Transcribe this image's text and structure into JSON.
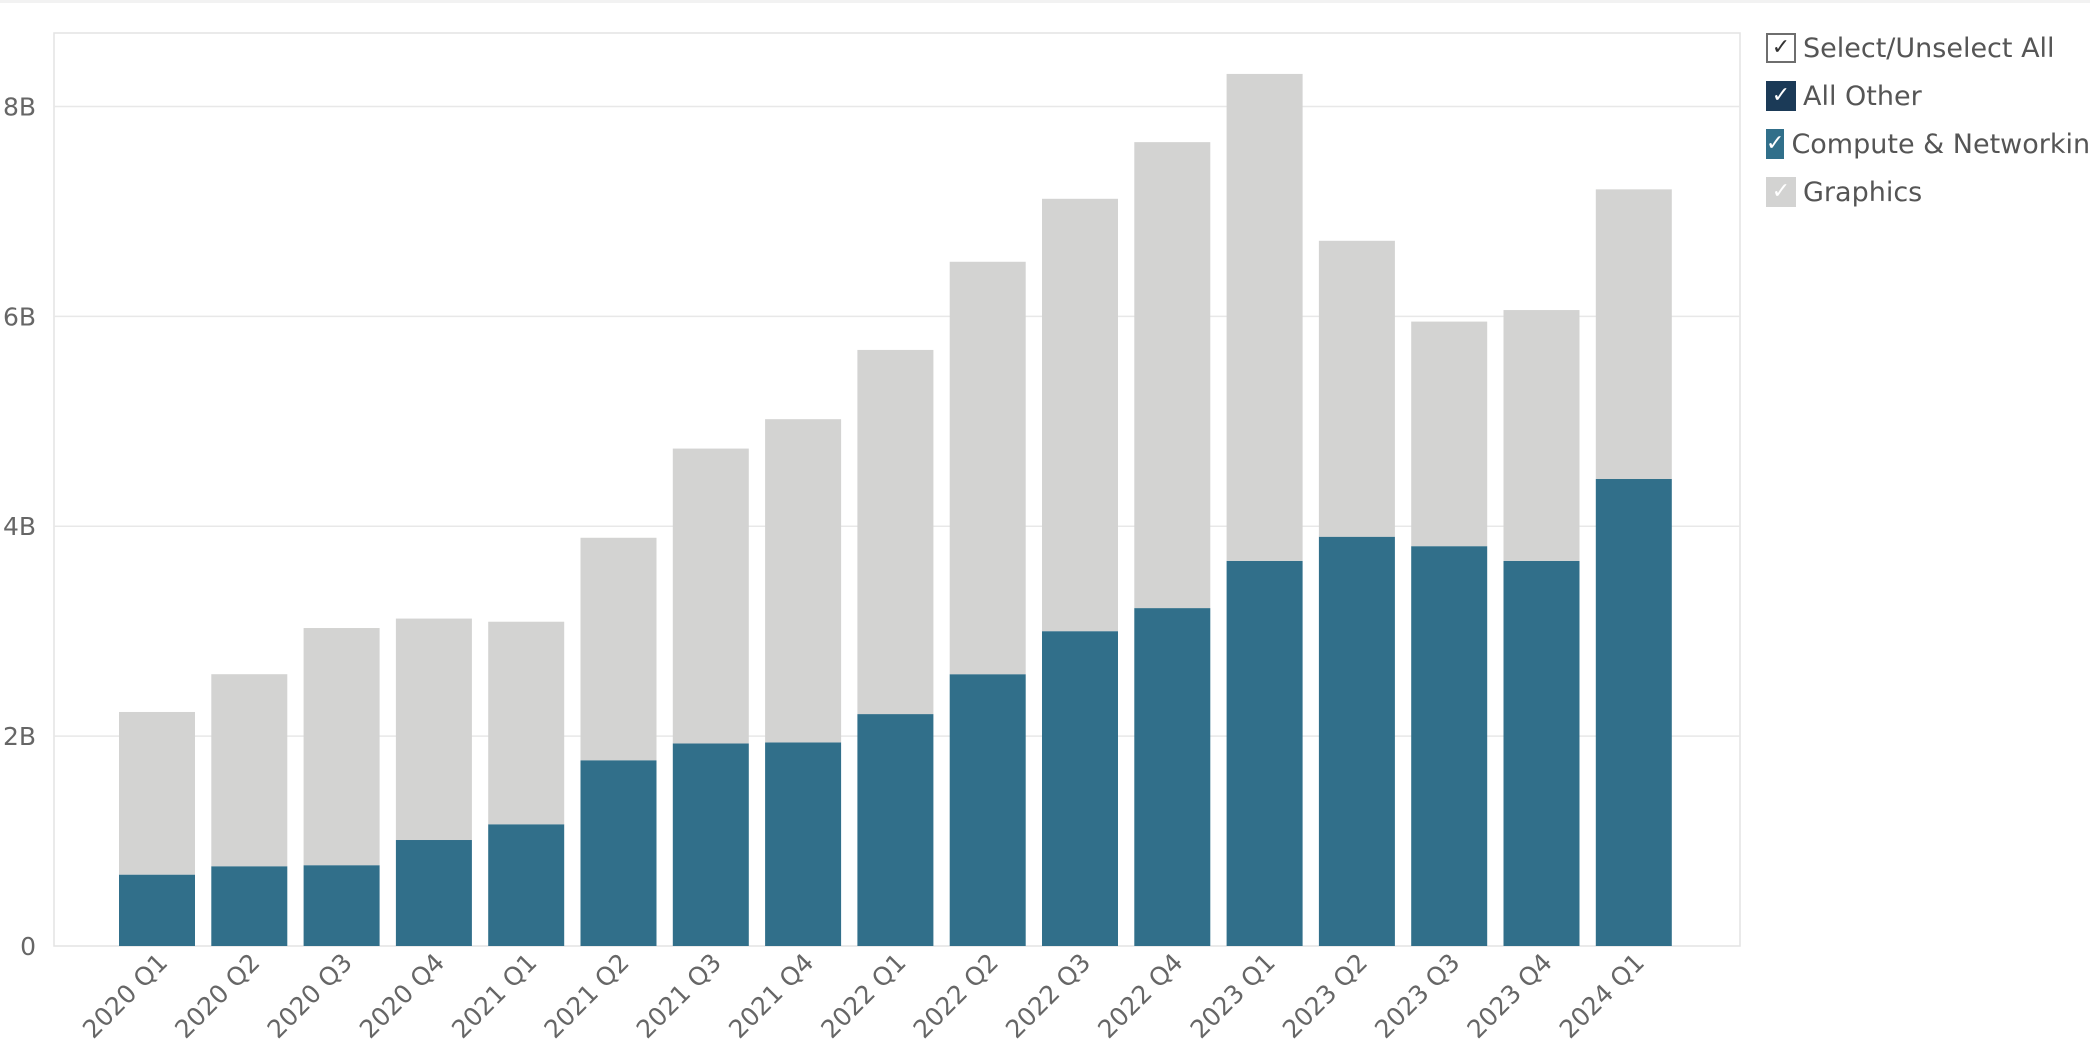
{
  "chart_data": {
    "type": "bar",
    "stacked": true,
    "categories": [
      "2020 Q1",
      "2020 Q2",
      "2020 Q3",
      "2020 Q4",
      "2021 Q1",
      "2021 Q2",
      "2021 Q3",
      "2021 Q4",
      "2022 Q1",
      "2022 Q2",
      "2022 Q3",
      "2022 Q4",
      "2023 Q1",
      "2023 Q2",
      "2023 Q3",
      "2023 Q4",
      "2024 Q1"
    ],
    "series": [
      {
        "name": "All Other",
        "color": "#1b3a57",
        "values": [
          0,
          0,
          0,
          0,
          0,
          0,
          0,
          0,
          0,
          0,
          0,
          0,
          0,
          0,
          0,
          0,
          0
        ]
      },
      {
        "name": "Compute & Networking",
        "color": "#316f8a",
        "values": [
          0.68,
          0.76,
          0.77,
          1.01,
          1.16,
          1.77,
          1.93,
          1.94,
          2.21,
          2.59,
          3.0,
          3.22,
          3.67,
          3.9,
          3.81,
          3.67,
          4.45
        ]
      },
      {
        "name": "Graphics",
        "color": "#d3d3d2",
        "values": [
          1.55,
          1.83,
          2.26,
          2.11,
          1.93,
          2.12,
          2.81,
          3.08,
          3.47,
          3.93,
          4.12,
          4.44,
          4.64,
          2.82,
          2.14,
          2.39,
          2.76
        ]
      }
    ],
    "yticks": [
      0,
      2,
      4,
      6,
      8
    ],
    "ytick_labels": [
      "0",
      "2B",
      "4B",
      "6B",
      "8B"
    ],
    "ylim": [
      0,
      8.7
    ],
    "grid": true,
    "legend_position": "right"
  },
  "legend": {
    "select_all_label": "Select/Unselect All",
    "check_glyph": "✓",
    "items": [
      {
        "label": "All Other",
        "color": "#1b3a57",
        "checked": true
      },
      {
        "label": "Compute & Networking",
        "color": "#316f8a",
        "checked": true
      },
      {
        "label": "Graphics",
        "color": "#d3d3d2",
        "checked": true
      }
    ]
  },
  "colors": {
    "gridline": "#e8e8e8",
    "axis_text": "#666666",
    "frame": "#e3e3e3"
  }
}
